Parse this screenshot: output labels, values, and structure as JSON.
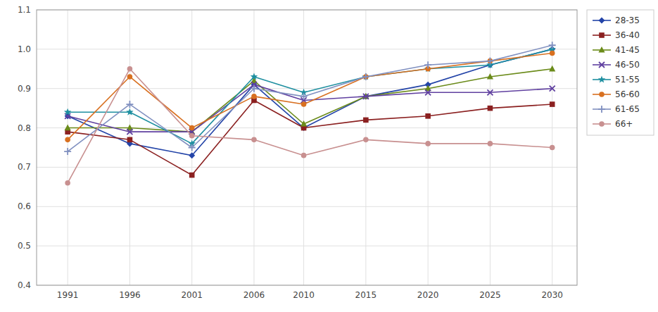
{
  "chart_data": {
    "type": "line",
    "x": [
      1991,
      1996,
      2001,
      2006,
      2010,
      2015,
      2020,
      2025,
      2030
    ],
    "series": [
      {
        "name": "28-35",
        "color": "#2344A8",
        "marker": "diamond",
        "values": [
          0.83,
          0.76,
          0.73,
          0.91,
          0.8,
          0.88,
          0.91,
          0.96,
          1.0
        ]
      },
      {
        "name": "36-40",
        "color": "#8B2020",
        "marker": "square",
        "values": [
          0.79,
          0.77,
          0.68,
          0.87,
          0.8,
          0.82,
          0.83,
          0.85,
          0.86
        ]
      },
      {
        "name": "41-45",
        "color": "#6B8B1A",
        "marker": "triangle",
        "values": [
          0.8,
          0.8,
          0.79,
          0.92,
          0.81,
          0.88,
          0.9,
          0.93,
          0.95
        ]
      },
      {
        "name": "46-50",
        "color": "#6040A0",
        "marker": "x",
        "values": [
          0.83,
          0.79,
          0.79,
          0.91,
          0.87,
          0.88,
          0.89,
          0.89,
          0.9
        ]
      },
      {
        "name": "51-55",
        "color": "#1E8FA0",
        "marker": "star",
        "values": [
          0.84,
          0.84,
          0.76,
          0.93,
          0.89,
          0.93,
          0.95,
          0.96,
          1.0
        ]
      },
      {
        "name": "56-60",
        "color": "#D87020",
        "marker": "circle",
        "values": [
          0.77,
          0.93,
          0.8,
          0.88,
          0.86,
          0.93,
          0.95,
          0.97,
          0.99
        ]
      },
      {
        "name": "61-65",
        "color": "#8090C0",
        "marker": "plus",
        "values": [
          0.74,
          0.86,
          0.75,
          0.9,
          0.88,
          0.93,
          0.96,
          0.97,
          1.01
        ]
      },
      {
        "name": "66+",
        "color": "#C89090",
        "marker": "circle",
        "values": [
          0.66,
          0.95,
          0.78,
          0.77,
          0.73,
          0.77,
          0.76,
          0.76,
          0.75
        ]
      }
    ],
    "xlim": [
      1988.5,
      2032
    ],
    "xticks": [
      1991,
      1996,
      2001,
      2006,
      2010,
      2015,
      2020,
      2025,
      2030
    ],
    "ylim": [
      0.4,
      1.1
    ],
    "yticks": [
      0.4,
      0.5,
      0.6,
      0.7,
      0.8,
      0.9,
      {
        "value": 1.0,
        "label": "1.0"
      },
      1.1
    ],
    "grid": true,
    "legend": "right"
  }
}
